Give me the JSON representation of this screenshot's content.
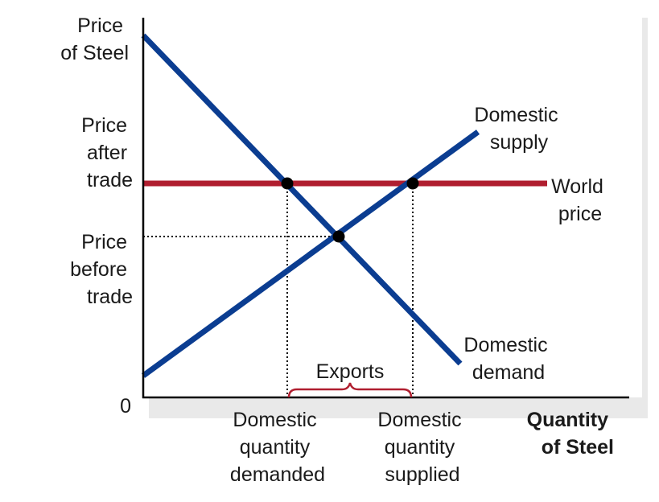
{
  "colors": {
    "curve_blue": "#0b3d91",
    "world_red": "#b01e2f",
    "axis": "#000000",
    "shadow": "#e6e6e6",
    "brace": "#b01e2f"
  },
  "axes": {
    "y_label": [
      "Price",
      "of Steel"
    ],
    "x_label": [
      "Quantity",
      "of Steel"
    ],
    "origin": "0"
  },
  "y_ticks": {
    "after": [
      "Price",
      "after",
      "trade"
    ],
    "before": [
      "Price",
      "before",
      "trade"
    ]
  },
  "x_ticks": {
    "demanded": [
      "Domestic",
      "quantity",
      "demanded"
    ],
    "supplied": [
      "Domestic",
      "quantity",
      "supplied"
    ]
  },
  "curves": {
    "supply": [
      "Domestic",
      "supply"
    ],
    "demand": [
      "Domestic",
      "demand"
    ],
    "world": [
      "World",
      "price"
    ]
  },
  "annotation": {
    "exports": "Exports"
  }
}
